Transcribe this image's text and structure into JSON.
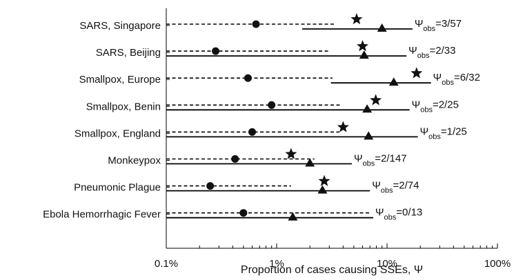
{
  "chart_data": {
    "type": "scatter",
    "title": "",
    "xlabel": "Proportion of cases causing SSEs, Ψ",
    "ylabel": "",
    "x_scale": "log",
    "xlim": [
      0.1,
      100
    ],
    "x_ticks": [
      0.1,
      1,
      10,
      100
    ],
    "x_tick_labels": [
      "0.1%",
      "1%",
      "10%",
      "100%"
    ],
    "grid": false,
    "categories": [
      "SARS, Singapore",
      "SARS, Beijing",
      "Smallpox, Europe",
      "Smallpox, Benin",
      "Smallpox, England",
      "Monkeypox",
      "Pneumonic Plague",
      "Ebola Hemorrhagic Fever"
    ],
    "series": [
      {
        "marker": "circle",
        "interval_style": "dashed",
        "values": [
          0.65,
          0.28,
          0.55,
          0.9,
          0.6,
          0.42,
          0.25,
          0.5
        ],
        "interval_low": [
          0.1,
          0.1,
          0.1,
          0.1,
          0.1,
          0.1,
          0.1,
          0.1
        ],
        "interval_high": [
          3.4,
          3.0,
          3.2,
          3.9,
          3.7,
          2.2,
          1.35,
          7.2
        ]
      },
      {
        "marker": "triangle",
        "interval_style": "solid",
        "values": [
          9.0,
          6.2,
          11.5,
          6.6,
          6.8,
          2.0,
          2.6,
          1.4
        ],
        "interval_low": [
          1.7,
          0.1,
          3.1,
          0.1,
          0.1,
          0.1,
          0.1,
          0.1
        ],
        "interval_high": [
          17,
          15,
          25,
          16,
          19,
          4.8,
          7,
          7.5
        ]
      },
      {
        "marker": "star",
        "values": [
          5.3,
          6.0,
          18.5,
          7.9,
          4.0,
          1.35,
          2.7,
          null
        ]
      }
    ],
    "annotations": [
      {
        "symbol": "Ψ",
        "subscript": "obs",
        "value": "=3/57"
      },
      {
        "symbol": "Ψ",
        "subscript": "obs",
        "value": "=2/33"
      },
      {
        "symbol": "Ψ",
        "subscript": "obs",
        "value": "=6/32"
      },
      {
        "symbol": "Ψ",
        "subscript": "obs",
        "value": "=2/25"
      },
      {
        "symbol": "Ψ",
        "subscript": "obs",
        "value": "=1/25"
      },
      {
        "symbol": "Ψ",
        "subscript": "obs",
        "value": "=2/147"
      },
      {
        "symbol": "Ψ",
        "subscript": "obs",
        "value": "=2/74"
      },
      {
        "symbol": "Ψ",
        "subscript": "obs",
        "value": "=0/13"
      }
    ]
  }
}
